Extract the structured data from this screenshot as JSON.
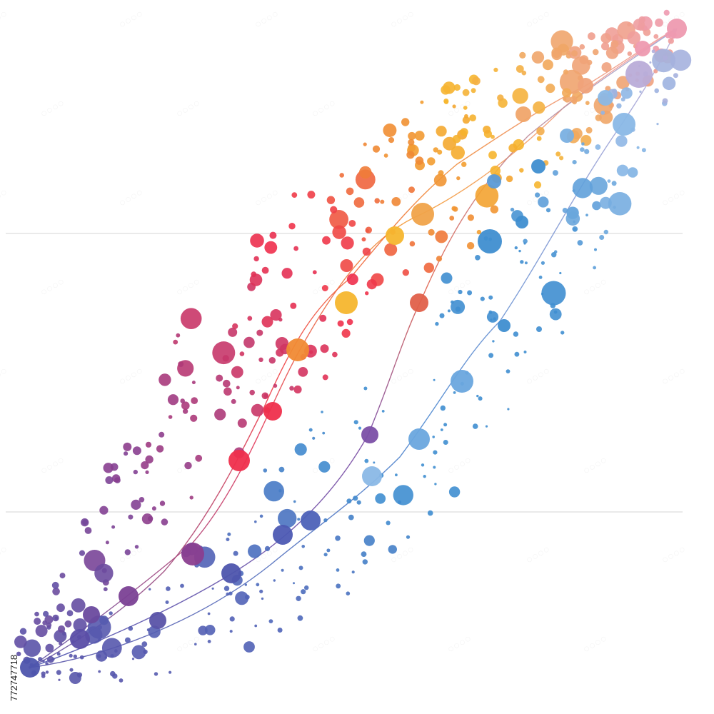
{
  "image": {
    "stock_id": "772747718",
    "palette": {
      "violet": "#5a53a8",
      "purple": "#8a3e8f",
      "magenta": "#c4376b",
      "red": "#ef2f4c",
      "orange": "#f08a34",
      "amber": "#f6b62e",
      "peach": "#f0a56a",
      "pink": "#ee9ab0",
      "lavender": "#b9acd8",
      "light-blue": "#8ab8e6",
      "blue": "#3f8ed0",
      "guide": "#d4d4d4"
    },
    "icons": [
      "connected-dots-network-graphic"
    ]
  }
}
